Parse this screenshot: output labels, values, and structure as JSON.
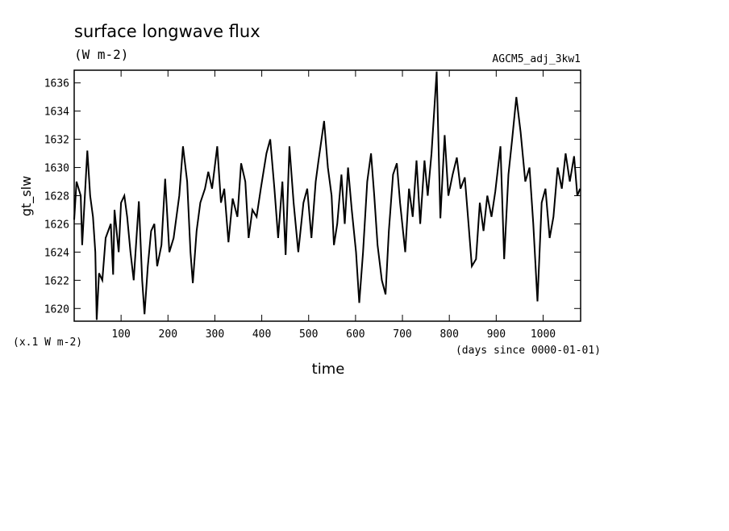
{
  "chart_data": {
    "type": "line",
    "title": "surface longwave flux",
    "subtitle": "(W m-2)",
    "annotation": "AGCM5_adj_3kw1",
    "ylabel": "gt_slw",
    "y_unit_note": "(x.1 W m-2)",
    "xlabel": "time",
    "x_unit_note": "(days since 0000-01-01)",
    "xlim": [
      0,
      1080
    ],
    "ylim": [
      1619.1,
      1636.9
    ],
    "xticks": [
      100,
      200,
      300,
      400,
      500,
      600,
      700,
      800,
      900,
      1000
    ],
    "yticks": [
      1620,
      1622,
      1624,
      1626,
      1628,
      1630,
      1632,
      1634,
      1636
    ],
    "x": [
      0,
      5,
      14,
      17,
      28,
      34,
      40,
      45,
      48,
      53,
      60,
      67,
      78,
      83,
      86,
      95,
      100,
      107,
      113,
      120,
      127,
      138,
      145,
      150,
      157,
      164,
      171,
      177,
      186,
      194,
      203,
      212,
      224,
      232,
      241,
      248,
      253,
      261,
      269,
      279,
      286,
      294,
      305,
      313,
      320,
      329,
      338,
      348,
      356,
      365,
      372,
      380,
      389,
      398,
      410,
      418,
      427,
      435,
      444,
      451,
      459,
      468,
      478,
      489,
      497,
      506,
      515,
      521,
      533,
      541,
      549,
      554,
      561,
      570,
      577,
      584,
      592,
      601,
      608,
      616,
      625,
      633,
      640,
      647,
      656,
      664,
      671,
      680,
      688,
      695,
      706,
      714,
      722,
      730,
      738,
      747,
      754,
      762,
      773,
      781,
      790,
      798,
      807,
      816,
      824,
      833,
      841,
      848,
      857,
      865,
      873,
      881,
      890,
      898,
      909,
      917,
      926,
      934,
      943,
      952,
      962,
      971,
      979,
      988,
      997,
      1005,
      1014,
      1022,
      1031,
      1040,
      1048,
      1057,
      1066,
      1073,
      1079
    ],
    "series": [
      {
        "name": "gt_slw",
        "color": "#000000",
        "values": [
          1626.3,
          1629,
          1628,
          1624.5,
          1631.2,
          1628,
          1626.5,
          1624,
          1619.2,
          1622.5,
          1622,
          1625,
          1626,
          1622.4,
          1627,
          1624,
          1627.5,
          1628,
          1626.5,
          1624,
          1622,
          1627.6,
          1622,
          1619.6,
          1623,
          1625.5,
          1626,
          1623,
          1624.5,
          1629.2,
          1624,
          1625,
          1628,
          1631.5,
          1629,
          1624,
          1621.8,
          1625.5,
          1627.5,
          1628.5,
          1629.7,
          1628.5,
          1631.5,
          1627.5,
          1628.5,
          1624.7,
          1627.8,
          1626.5,
          1630.3,
          1629,
          1625,
          1627,
          1626.5,
          1628.5,
          1631,
          1632,
          1628.5,
          1625,
          1629,
          1623.8,
          1631.5,
          1627.5,
          1624,
          1627.5,
          1628.5,
          1625,
          1629,
          1630.5,
          1633.3,
          1630,
          1628,
          1624.5,
          1626,
          1629.5,
          1626,
          1630,
          1627,
          1624,
          1620.4,
          1624,
          1629,
          1631,
          1628,
          1624.5,
          1622,
          1621,
          1625.5,
          1629.5,
          1630.3,
          1627.5,
          1624,
          1628.5,
          1626.5,
          1630.5,
          1626,
          1630.5,
          1628,
          1631,
          1636.8,
          1626.4,
          1632.3,
          1628,
          1629.5,
          1630.7,
          1628.5,
          1629.3,
          1626,
          1623,
          1623.5,
          1627.5,
          1625.5,
          1628,
          1626.5,
          1628.3,
          1631.5,
          1623.5,
          1629.5,
          1632,
          1635,
          1632.5,
          1629,
          1630,
          1626,
          1620.5,
          1627.5,
          1628.5,
          1625,
          1626.5,
          1630,
          1628.5,
          1631,
          1629,
          1630.8,
          1628,
          1628.5
        ]
      }
    ]
  }
}
